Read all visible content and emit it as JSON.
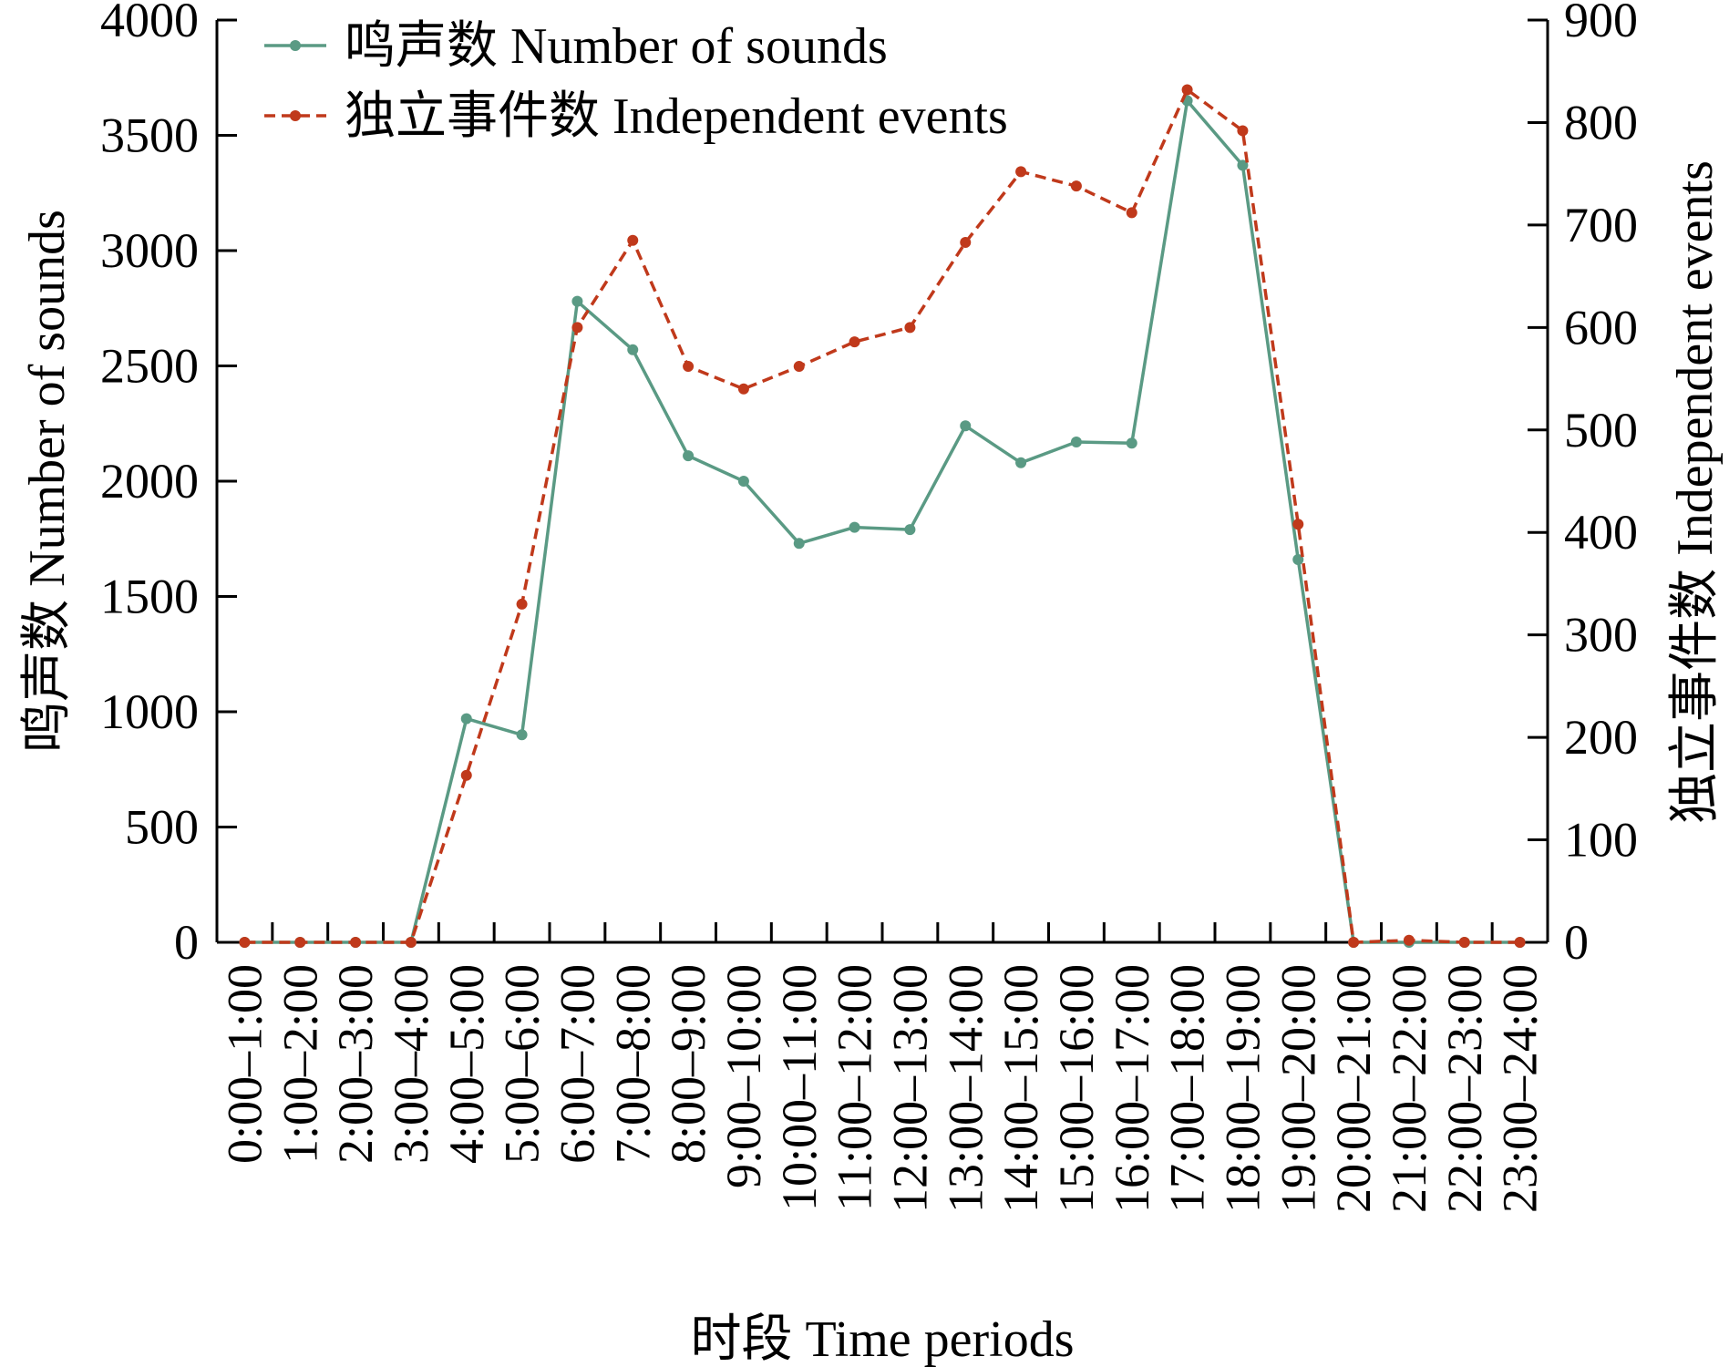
{
  "chart_data": {
    "type": "line",
    "title": "",
    "xlabel": "时段 Time periods",
    "ylabel": "鸣声数 Number of sounds",
    "y2label": "独立事件数 Independent events",
    "ylim": [
      0,
      4000
    ],
    "y2lim": [
      0,
      900
    ],
    "yticks": [
      0,
      500,
      1000,
      1500,
      2000,
      2500,
      3000,
      3500,
      4000
    ],
    "y2ticks": [
      0,
      100,
      200,
      300,
      400,
      500,
      600,
      700,
      800,
      900
    ],
    "categories": [
      "0:00–1:00",
      "1:00–2:00",
      "2:00–3:00",
      "3:00–4:00",
      "4:00–5:00",
      "5:00–6:00",
      "6:00–7:00",
      "7:00–8:00",
      "8:00–9:00",
      "9:00–10:00",
      "10:00–11:00",
      "11:00–12:00",
      "12:00–13:00",
      "13:00–14:00",
      "14:00–15:00",
      "15:00–16:00",
      "16:00–17:00",
      "17:00–18:00",
      "18:00–19:00",
      "19:00–20:00",
      "20:00–21:00",
      "21:00–22:00",
      "22:00–23:00",
      "23:00–24:00"
    ],
    "series": [
      {
        "name": "鸣声数 Number of sounds",
        "axis": "left",
        "color": "#5a9a84",
        "style": "solid",
        "values": [
          0,
          0,
          0,
          0,
          970,
          900,
          2780,
          2570,
          2110,
          2000,
          1730,
          1800,
          1790,
          2240,
          2080,
          2170,
          2165,
          3650,
          3370,
          1660,
          0,
          0,
          0,
          0
        ]
      },
      {
        "name": "独立事件数 Independent events",
        "axis": "right",
        "color": "#c0391b",
        "style": "dashed",
        "values": [
          0,
          0,
          0,
          0,
          163,
          330,
          600,
          685,
          562,
          540,
          562,
          586,
          600,
          683,
          752,
          738,
          712,
          832,
          792,
          408,
          0,
          2,
          0,
          0
        ]
      }
    ],
    "legend": "top-left",
    "grid": false
  }
}
